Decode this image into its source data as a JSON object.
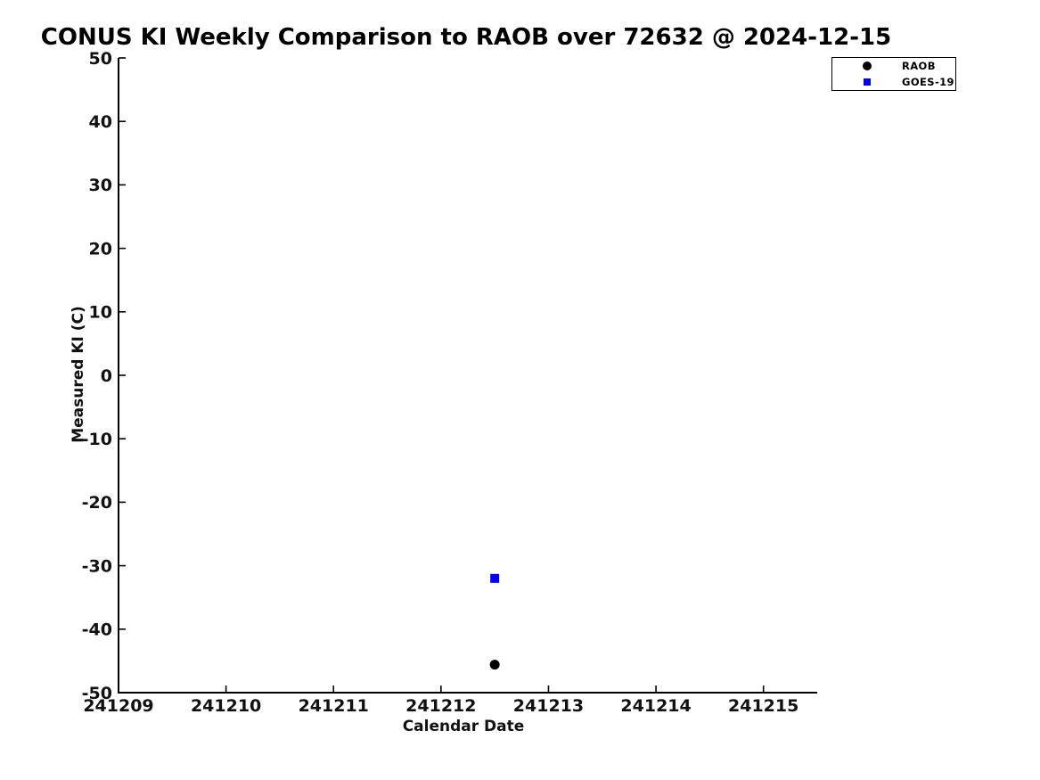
{
  "chart_data": {
    "type": "scatter",
    "title": "CONUS KI Weekly Comparison to RAOB over 72632 @ 2024-12-15",
    "xlabel": "Calendar Date",
    "ylabel": "Measured KI (C)",
    "xlim": [
      241209,
      241215.5
    ],
    "ylim": [
      -50,
      50
    ],
    "xticks": [
      241209,
      241210,
      241211,
      241212,
      241213,
      241214,
      241215
    ],
    "yticks": [
      -50,
      -40,
      -30,
      -20,
      -10,
      0,
      10,
      20,
      30,
      40,
      50
    ],
    "grid": false,
    "legend_position": "top-right-outside-axes",
    "series": [
      {
        "name": "RAOB",
        "marker": "circle",
        "color": "#000000",
        "points": [
          {
            "x": 241212.5,
            "y": -45.6
          }
        ]
      },
      {
        "name": "GOES-19",
        "marker": "square",
        "color": "#0000ff",
        "points": [
          {
            "x": 241212.5,
            "y": -32.0
          }
        ]
      }
    ]
  },
  "colors": {
    "background": "#ffffff",
    "axis": "#000000",
    "text": "#000000",
    "raob_marker": "#000000",
    "goes19_marker": "#0000ff"
  }
}
